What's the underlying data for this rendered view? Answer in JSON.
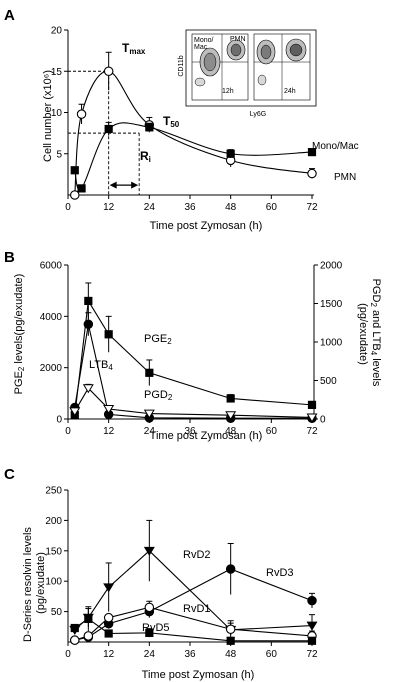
{
  "colors": {
    "ink": "#000000",
    "white": "#ffffff",
    "flow_gray": "#9a9a9a"
  },
  "chart_data": [
    {
      "panel": "A",
      "type": "line",
      "xlabel": "Time post Zymosan (h)",
      "ylabel": "Cell number (x10⁶)",
      "x_ticks": [
        0,
        12,
        24,
        36,
        48,
        60,
        72
      ],
      "xlim": [
        0,
        72
      ],
      "ylim": [
        0,
        20
      ],
      "y_ticks": [
        5,
        10,
        15,
        20
      ],
      "series": [
        {
          "name": "PMN",
          "marker": "circle-open",
          "points": [
            [
              2,
              0
            ],
            [
              4,
              9.8
            ],
            [
              12,
              15
            ],
            [
              24,
              8.5
            ],
            [
              48,
              4.2
            ],
            [
              72,
              2.6
            ]
          ],
          "err": [
            0,
            1.2,
            2.3,
            0.9,
            0.8,
            0.6
          ]
        },
        {
          "name": "Mono/Mac",
          "marker": "square-filled",
          "points": [
            [
              2,
              3
            ],
            [
              4,
              0.8
            ],
            [
              12,
              8
            ],
            [
              24,
              8.2
            ],
            [
              48,
              5
            ],
            [
              72,
              5.2
            ]
          ],
          "err": [
            0,
            0.3,
            0.8,
            0.5,
            0.5,
            0.3
          ]
        }
      ],
      "annotations": {
        "tmax": "T",
        "tmax_sub": "max",
        "t50": "T",
        "t50_sub": "50",
        "ri": "R",
        "ri_sub": "i"
      },
      "inset": {
        "y_label": "CD11b",
        "x_label": "Ly6G",
        "left_panel": {
          "time": "12h",
          "gate_mono": "Mono/\nMac",
          "gate_pmn": "PMN"
        },
        "right_panel": {
          "time": "24h"
        }
      }
    },
    {
      "panel": "B",
      "type": "line",
      "xlabel": "Time post Zymosan (h)",
      "ylabel_left": "PGE₂ levels(pg/exudate)",
      "ylabel_right": "PGD₂ and LTB₄ levels (pg/exudate)",
      "x_ticks": [
        0,
        12,
        24,
        36,
        48,
        60,
        72
      ],
      "xlim": [
        0,
        72
      ],
      "ylim_left": [
        0,
        6000
      ],
      "ylim_right": [
        0,
        2000
      ],
      "y_ticks_left": [
        0,
        2000,
        4000,
        6000
      ],
      "y_ticks_right": [
        0,
        500,
        1000,
        1500,
        2000
      ],
      "series": [
        {
          "name": "PGE",
          "sub": "2",
          "axis": "left",
          "marker": "square-filled",
          "points": [
            [
              2,
              150
            ],
            [
              6,
              4600
            ],
            [
              12,
              3300
            ],
            [
              24,
              1800
            ],
            [
              48,
              800
            ],
            [
              72,
              550
            ]
          ],
          "err": [
            0,
            700,
            700,
            500,
            150,
            100
          ]
        },
        {
          "name": "LTB",
          "sub": "4",
          "axis": "right",
          "marker": "circle-filled",
          "points": [
            [
              2,
              150
            ],
            [
              6,
              1230
            ],
            [
              12,
              60
            ],
            [
              24,
              15
            ],
            [
              48,
              10
            ],
            [
              72,
              10
            ]
          ],
          "err": [
            0,
            150,
            10,
            5,
            5,
            5
          ]
        },
        {
          "name": "PGD",
          "sub": "2",
          "axis": "right",
          "marker": "triangle-down-open",
          "points": [
            [
              2,
              100
            ],
            [
              6,
              400
            ],
            [
              12,
              130
            ],
            [
              24,
              70
            ],
            [
              48,
              50
            ],
            [
              72,
              20
            ]
          ],
          "err": [
            0,
            50,
            30,
            15,
            10,
            10
          ]
        }
      ]
    },
    {
      "panel": "C",
      "type": "line",
      "xlabel": "Time post Zymosan (h)",
      "ylabel": "D-Series resolvin levels (pg/exudate)",
      "x_ticks": [
        0,
        12,
        24,
        36,
        48,
        60,
        72
      ],
      "xlim": [
        0,
        72
      ],
      "ylim": [
        0,
        250
      ],
      "y_ticks": [
        50,
        100,
        150,
        200,
        250
      ],
      "series": [
        {
          "name": "RvD2",
          "marker": "triangle-down-filled",
          "points": [
            [
              2,
              20
            ],
            [
              6,
              40
            ],
            [
              12,
              90
            ],
            [
              24,
              150
            ],
            [
              48,
              20
            ],
            [
              72,
              27
            ]
          ],
          "err": [
            0,
            15,
            40,
            50,
            15,
            18
          ]
        },
        {
          "name": "RvD3",
          "marker": "circle-filled",
          "points": [
            [
              2,
              3
            ],
            [
              6,
              8
            ],
            [
              12,
              30
            ],
            [
              24,
              50
            ],
            [
              48,
              120
            ],
            [
              72,
              68
            ]
          ],
          "err": [
            0,
            0,
            8,
            10,
            42,
            12
          ]
        },
        {
          "name": "RvD1",
          "marker": "circle-open",
          "points": [
            [
              2,
              3
            ],
            [
              6,
              10
            ],
            [
              12,
              40
            ],
            [
              24,
              57
            ],
            [
              48,
              21
            ],
            [
              72,
              10
            ]
          ],
          "err": [
            0,
            0,
            5,
            10,
            10,
            8
          ]
        },
        {
          "name": "RvD5",
          "marker": "square-filled",
          "points": [
            [
              2,
              23
            ],
            [
              6,
              38
            ],
            [
              12,
              14
            ],
            [
              24,
              15
            ],
            [
              48,
              2
            ],
            [
              72,
              2
            ]
          ],
          "err": [
            0,
            20,
            3,
            7,
            0,
            0
          ]
        }
      ]
    }
  ]
}
